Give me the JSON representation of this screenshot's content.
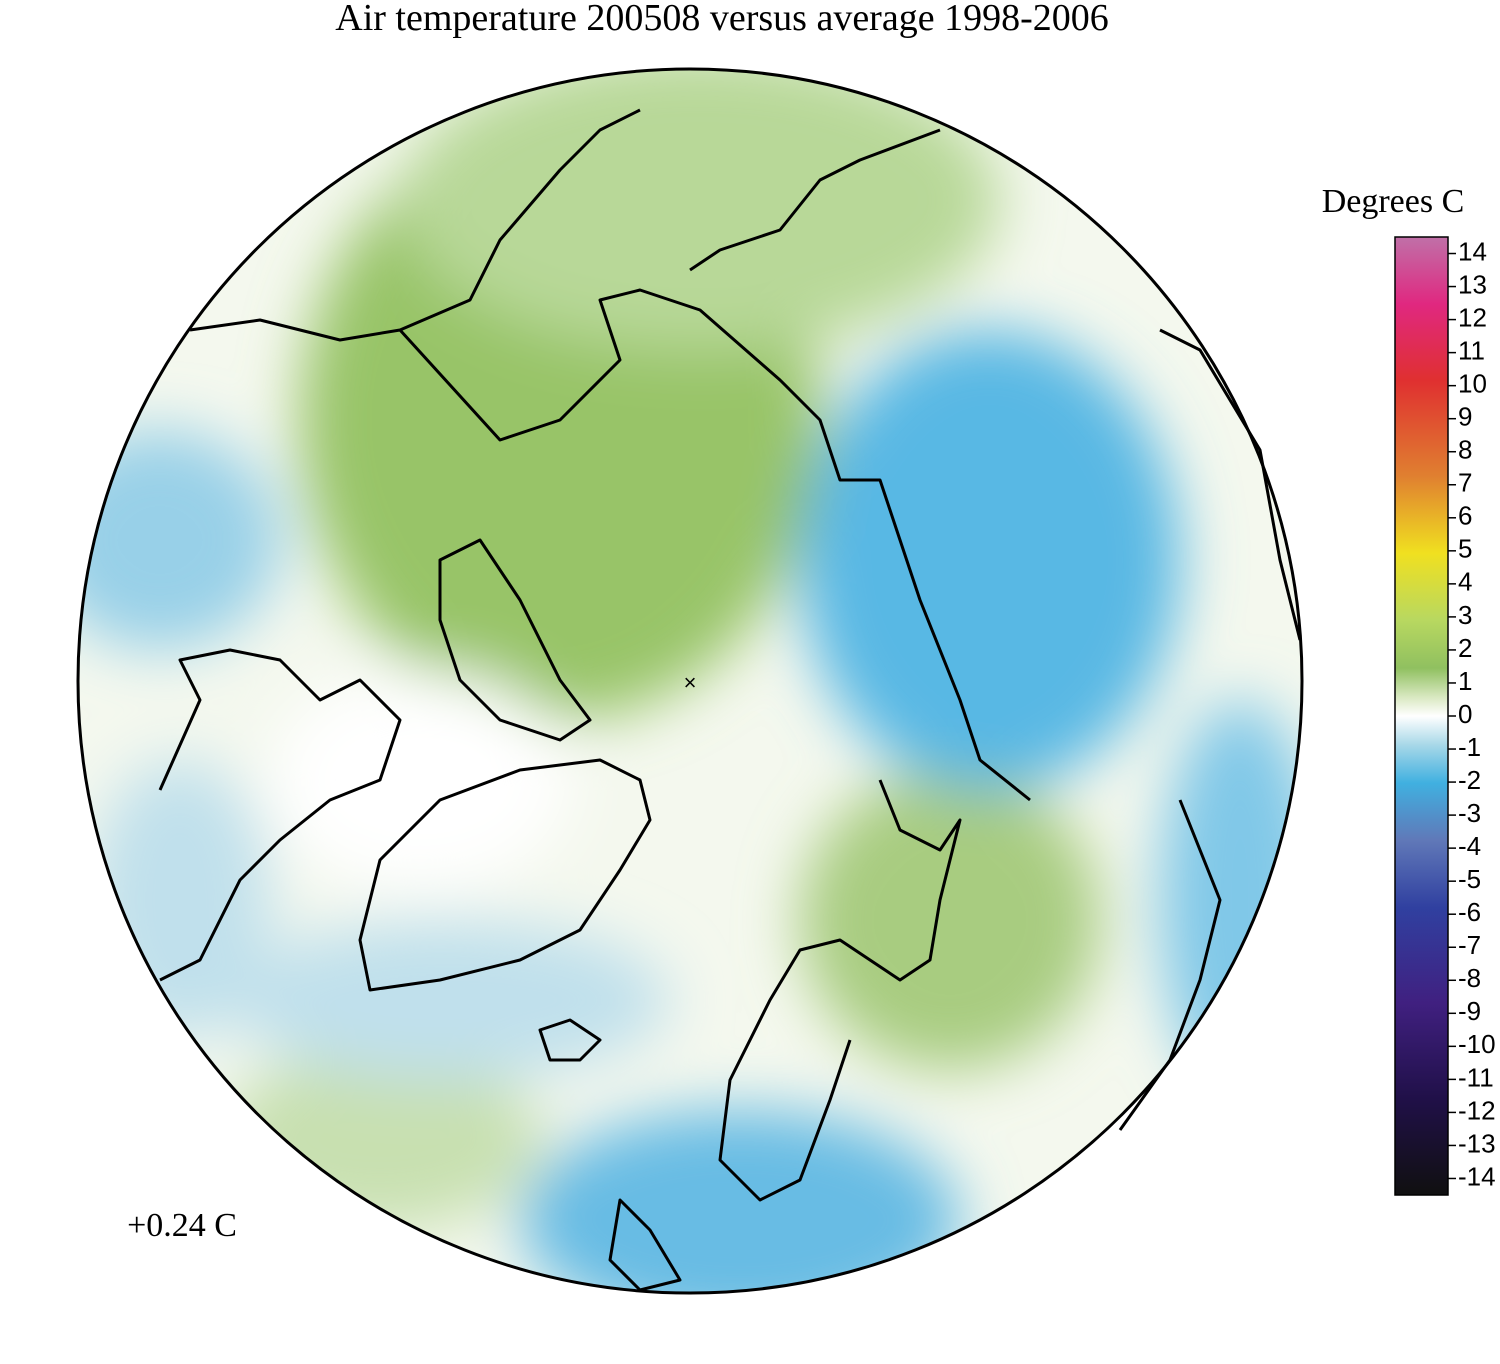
{
  "title": "Air temperature 200508 versus average 1998-2006",
  "annotation": "+0.24 C",
  "colorbar": {
    "label": "Degrees C",
    "range": [
      -14.5,
      14.5
    ],
    "ticks": [
      14,
      13,
      12,
      11,
      10,
      9,
      8,
      7,
      6,
      5,
      4,
      3,
      2,
      1,
      0,
      -1,
      -2,
      -3,
      -4,
      -5,
      -6,
      -7,
      -8,
      -9,
      -10,
      -11,
      -12,
      -13,
      -14
    ]
  }
}
